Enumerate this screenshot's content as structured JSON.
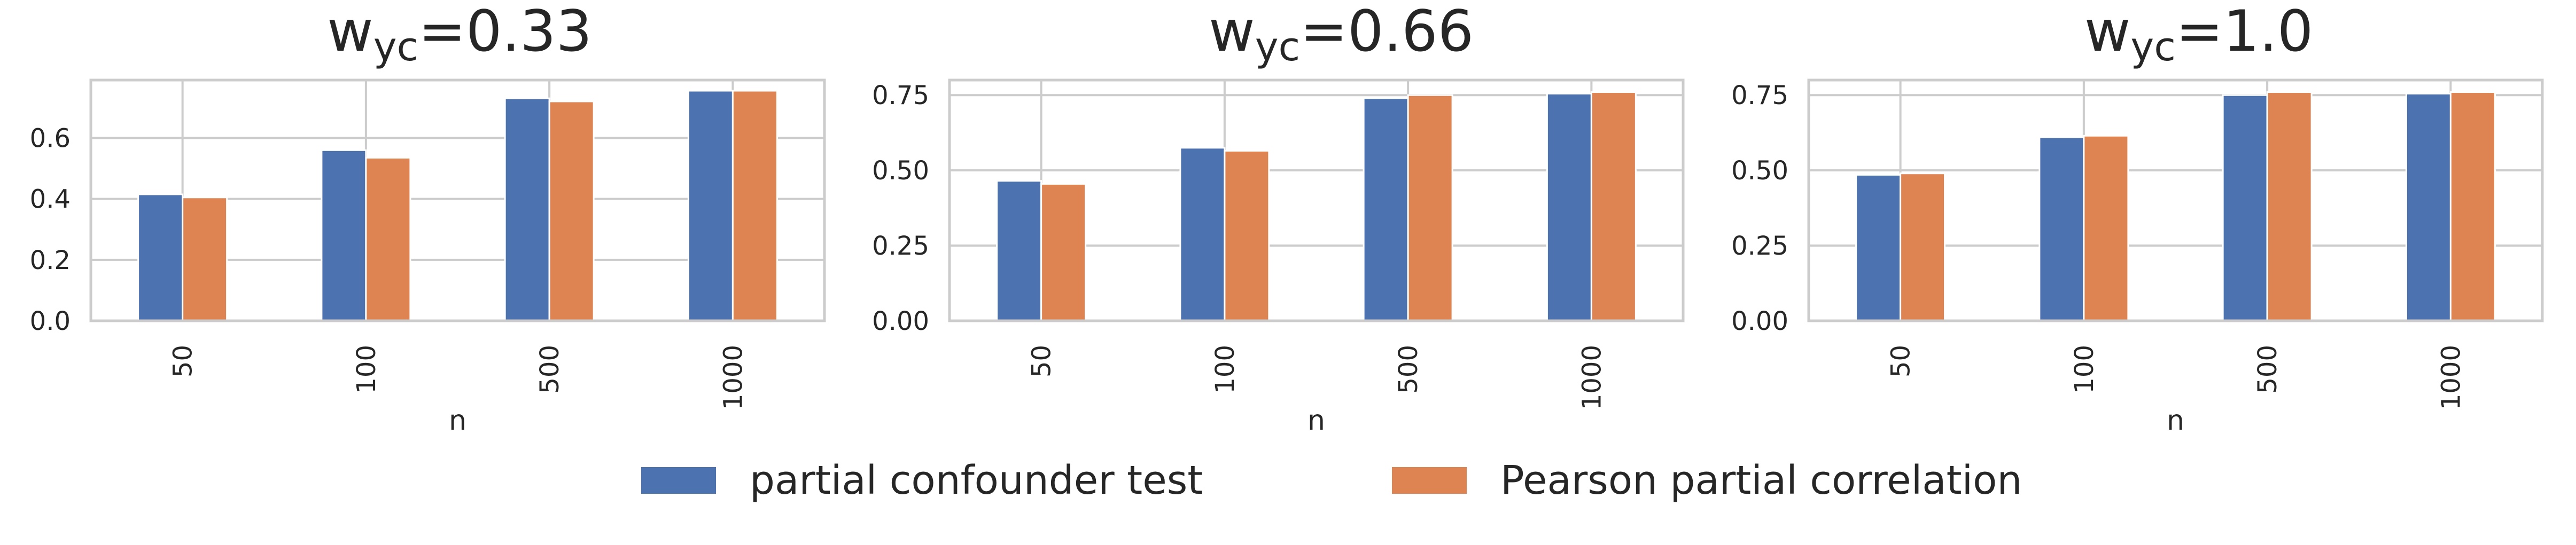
{
  "chart_data": [
    {
      "type": "bar",
      "title": {
        "base": "w",
        "sub": "yc",
        "suffix": "=0.33"
      },
      "xlabel": "n",
      "ylabel": "",
      "categories": [
        "50",
        "100",
        "500",
        "1000"
      ],
      "series": [
        {
          "name": "partial confounder test",
          "values": [
            0.415,
            0.56,
            0.73,
            0.755
          ]
        },
        {
          "name": "Pearson partial correlation",
          "values": [
            0.405,
            0.535,
            0.72,
            0.755
          ]
        }
      ],
      "ylim": [
        0,
        0.79
      ],
      "yticks": [
        "0.0",
        "0.2",
        "0.4",
        "0.6"
      ],
      "ytick_values": [
        0,
        0.2,
        0.4,
        0.6
      ],
      "grid": true
    },
    {
      "type": "bar",
      "title": {
        "base": "w",
        "sub": "yc",
        "suffix": "=0.66"
      },
      "xlabel": "n",
      "ylabel": "",
      "categories": [
        "50",
        "100",
        "500",
        "1000"
      ],
      "series": [
        {
          "name": "partial confounder test",
          "values": [
            0.465,
            0.575,
            0.74,
            0.755
          ]
        },
        {
          "name": "Pearson partial correlation",
          "values": [
            0.455,
            0.565,
            0.75,
            0.76
          ]
        }
      ],
      "ylim": [
        0,
        0.8
      ],
      "yticks": [
        "0.00",
        "0.25",
        "0.50",
        "0.75"
      ],
      "ytick_values": [
        0,
        0.25,
        0.5,
        0.75
      ],
      "grid": true
    },
    {
      "type": "bar",
      "title": {
        "base": "w",
        "sub": "yc",
        "suffix": "=1.0"
      },
      "xlabel": "n",
      "ylabel": "",
      "categories": [
        "50",
        "100",
        "500",
        "1000"
      ],
      "series": [
        {
          "name": "partial confounder test",
          "values": [
            0.485,
            0.61,
            0.75,
            0.755
          ]
        },
        {
          "name": "Pearson partial correlation",
          "values": [
            0.49,
            0.615,
            0.76,
            0.76
          ]
        }
      ],
      "ylim": [
        0,
        0.8
      ],
      "yticks": [
        "0.00",
        "0.25",
        "0.50",
        "0.75"
      ],
      "ytick_values": [
        0,
        0.25,
        0.5,
        0.75
      ],
      "grid": true
    }
  ],
  "legend": {
    "placement": "bottom-center",
    "items": [
      {
        "label": "partial confounder test",
        "color": "#4c72b0"
      },
      {
        "label": "Pearson partial correlation",
        "color": "#dd8452"
      }
    ]
  },
  "colors": {
    "series": [
      "#4c72b0",
      "#dd8452"
    ],
    "grid": "#cccccc",
    "frame": "#cccccc",
    "text": "#262626"
  }
}
